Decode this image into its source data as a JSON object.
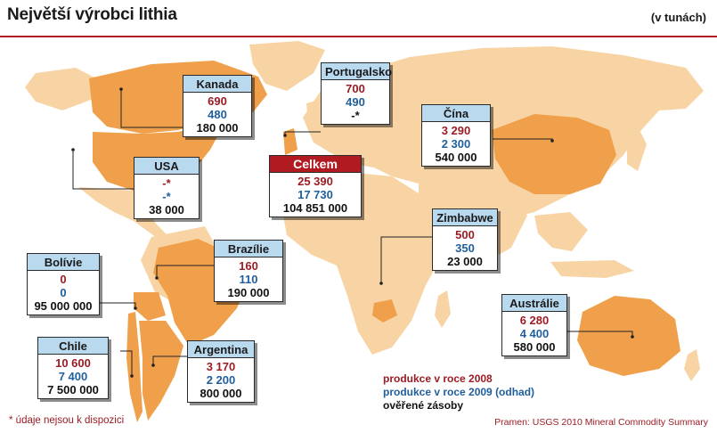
{
  "header": {
    "title": "Největší výrobci lithia",
    "unit": "(v tunách)"
  },
  "countries": [
    {
      "name": "Kanada",
      "v2008": "690",
      "v2009": "480",
      "reserves": "180 000"
    },
    {
      "name": "Portugalsko",
      "v2008": "700",
      "v2009": "490",
      "reserves": "-*"
    },
    {
      "name": "Čína",
      "v2008": "3 290",
      "v2009": "2 300",
      "reserves": "540 000"
    },
    {
      "name": "USA",
      "v2008": "-*",
      "v2009": "-*",
      "reserves": "38 000"
    },
    {
      "name": "Celkem",
      "v2008": "25 390",
      "v2009": "17 730",
      "reserves": "104 851 000"
    },
    {
      "name": "Zimbabwe",
      "v2008": "500",
      "v2009": "350",
      "reserves": "23 000"
    },
    {
      "name": "Brazílie",
      "v2008": "160",
      "v2009": "110",
      "reserves": "190 000"
    },
    {
      "name": "Bolívie",
      "v2008": "0",
      "v2009": "0",
      "reserves": "95 000 000"
    },
    {
      "name": "Austrálie",
      "v2008": "6 280",
      "v2009": "4 400",
      "reserves": "580 000"
    },
    {
      "name": "Chile",
      "v2008": "10 600",
      "v2009": "7 400",
      "reserves": "7 500 000"
    },
    {
      "name": "Argentina",
      "v2008": "3 170",
      "v2009": "2 200",
      "reserves": "800 000"
    }
  ],
  "legend": {
    "prod2008": "produkce v roce 2008",
    "prod2009": "produkce v roce 2009 (odhad)",
    "reserves": "ověřené zásoby"
  },
  "footnote": "* údaje nejsou k dispozici",
  "source": "Pramen: USGS 2010 Mineral Commodity Summary",
  "colors": {
    "land_highlight": "#f0a04b",
    "land_other": "#f8d4a4",
    "ocean": "#ffffff",
    "accent_red": "#b01a20",
    "header_blue": "#b9d9ef"
  }
}
